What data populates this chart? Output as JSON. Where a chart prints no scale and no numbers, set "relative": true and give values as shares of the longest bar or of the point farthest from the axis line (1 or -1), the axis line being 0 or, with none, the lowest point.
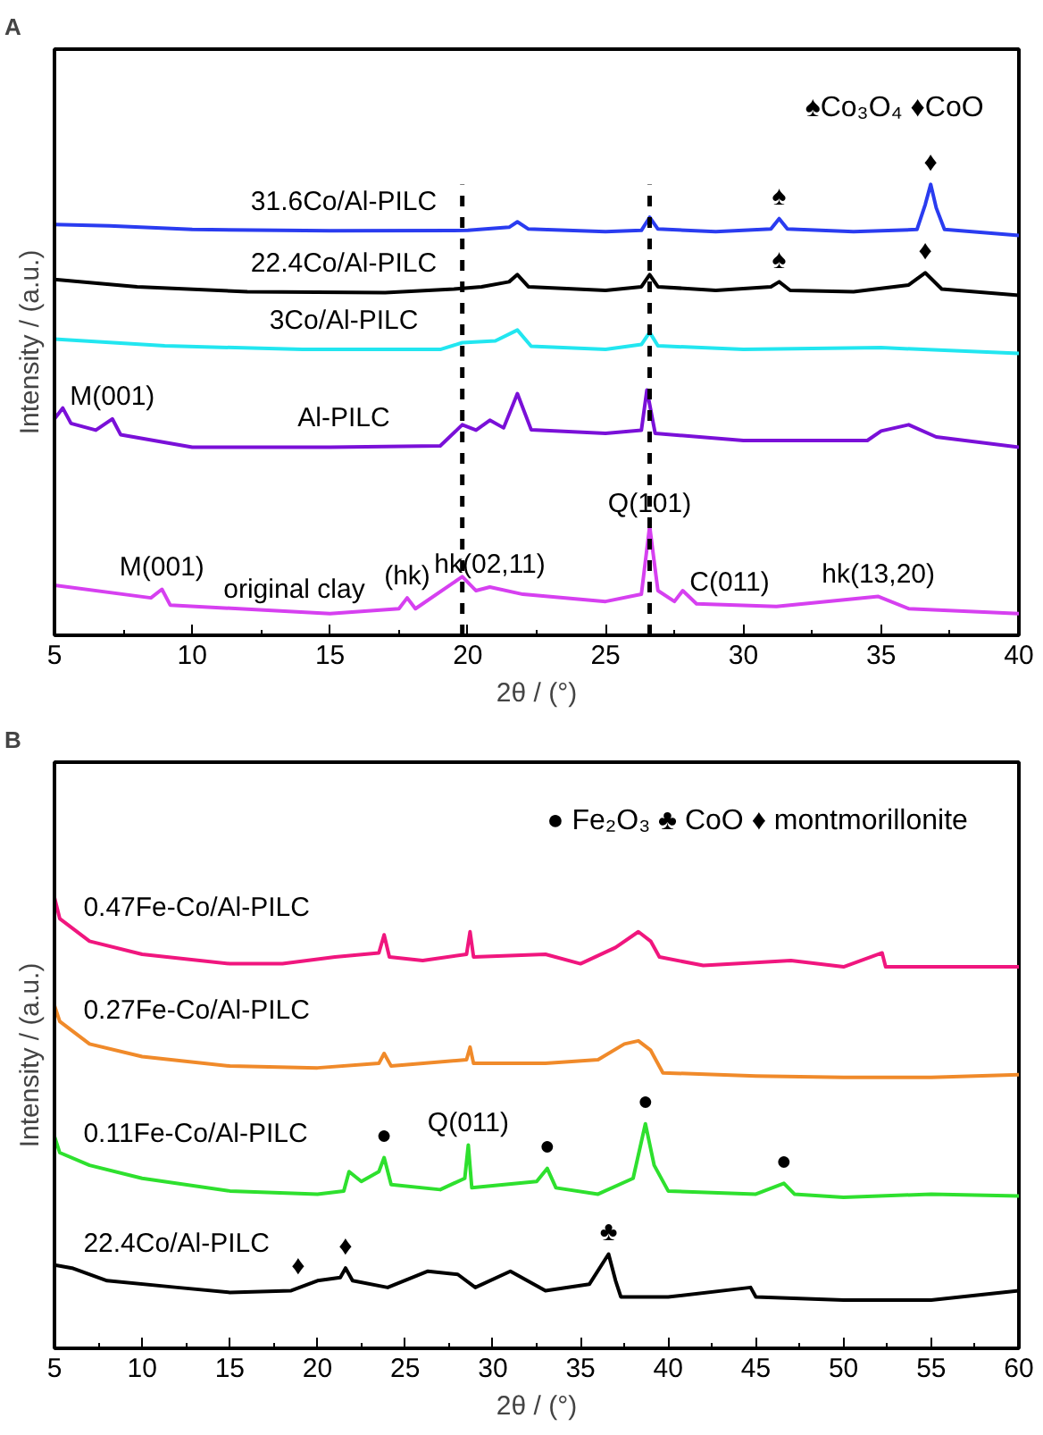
{
  "chart_data": [
    {
      "type": "line",
      "title": "A",
      "xlabel": "2θ / (°)",
      "ylabel": "Intensity / (a.u.)",
      "relative": true,
      "xlim": [
        5,
        40
      ],
      "xticks": [
        5,
        10,
        15,
        20,
        25,
        30,
        35,
        40
      ],
      "line_style": "solid",
      "series": [
        {
          "name": "31.6Co/Al-PILC",
          "color": "#2a3cf0",
          "x": [
            5,
            7,
            10,
            15,
            20,
            21.5,
            21.8,
            22.2,
            25,
            26.3,
            26.6,
            26.9,
            29,
            31,
            31.3,
            31.6,
            34,
            36.3,
            36.6,
            36.8,
            37.0,
            37.3,
            40
          ],
          "values": [
            0.911,
            0.908,
            0.9,
            0.897,
            0.898,
            0.905,
            0.917,
            0.901,
            0.895,
            0.898,
            0.927,
            0.901,
            0.895,
            0.901,
            0.924,
            0.901,
            0.895,
            0.9,
            0.955,
            1.0,
            0.948,
            0.9,
            0.887
          ]
        },
        {
          "name": "22.4Co/Al-PILC",
          "color": "#000000",
          "x": [
            5,
            8,
            12,
            17,
            19.5,
            20.5,
            21.5,
            21.8,
            22.2,
            25,
            26.3,
            26.6,
            26.9,
            29,
            31,
            31.3,
            31.7,
            34,
            36,
            36.6,
            37.2,
            40
          ],
          "values": [
            0.789,
            0.773,
            0.762,
            0.76,
            0.768,
            0.773,
            0.784,
            0.8,
            0.773,
            0.765,
            0.773,
            0.8,
            0.773,
            0.765,
            0.773,
            0.784,
            0.765,
            0.762,
            0.777,
            0.804,
            0.768,
            0.754
          ]
        },
        {
          "name": "3Co/Al-PILC",
          "color": "#22e6f0",
          "x": [
            5,
            9,
            14,
            19,
            19.8,
            21,
            21.8,
            22.3,
            25,
            26.3,
            26.6,
            26.9,
            30,
            35,
            40
          ],
          "values": [
            0.657,
            0.642,
            0.634,
            0.634,
            0.649,
            0.653,
            0.677,
            0.641,
            0.634,
            0.645,
            0.672,
            0.642,
            0.634,
            0.638,
            0.625
          ]
        },
        {
          "name": "Al-PILC",
          "color": "#7a10d8",
          "x": [
            5,
            5.3,
            5.6,
            6.5,
            7.1,
            7.4,
            10,
            15,
            19,
            19.8,
            20.3,
            20.8,
            21.3,
            21.8,
            22.3,
            25,
            26.3,
            26.5,
            26.8,
            30,
            34.5,
            35,
            36,
            37,
            40
          ],
          "values": [
            0.48,
            0.504,
            0.47,
            0.455,
            0.48,
            0.445,
            0.417,
            0.417,
            0.42,
            0.467,
            0.455,
            0.477,
            0.46,
            0.536,
            0.456,
            0.448,
            0.455,
            0.544,
            0.448,
            0.432,
            0.432,
            0.453,
            0.467,
            0.44,
            0.417
          ]
        },
        {
          "color": "#d640f0",
          "x": [
            5,
            8.5,
            8.9,
            9.2,
            15,
            17.5,
            17.8,
            18.1,
            19.8,
            20.3,
            20.8,
            22,
            25,
            26.3,
            26.6,
            26.9,
            27.5,
            27.8,
            28.3,
            31.2,
            34.9,
            36,
            40
          ],
          "values": [
            0.111,
            0.083,
            0.102,
            0.067,
            0.048,
            0.059,
            0.083,
            0.059,
            0.13,
            0.099,
            0.107,
            0.091,
            0.075,
            0.091,
            0.242,
            0.099,
            0.075,
            0.099,
            0.07,
            0.064,
            0.086,
            0.059,
            0.048
          ]
        }
      ],
      "ref_lines": [
        {
          "axis": "x",
          "value": 19.8,
          "line_style": "dashed"
        },
        {
          "axis": "x",
          "value": 26.6,
          "line_style": "dashed"
        }
      ],
      "annotations": [
        "♠Co₃O₄   ♦CoO",
        {
          "text": "♠",
          "x": 31.3,
          "y": 0.924
        },
        {
          "text": "♦",
          "x": 36.8,
          "y": 1.0
        },
        {
          "text": "♠",
          "x": 31.3,
          "y": 0.784
        },
        {
          "text": "♦",
          "x": 36.6,
          "y": 0.804
        },
        {
          "text": "M(001)",
          "x": 7.1,
          "y": 0.48
        },
        {
          "text": "original clay",
          "x": 13.7,
          "y": 0.052
        },
        {
          "text": "M(001)",
          "x": 8.9,
          "y": 0.102
        },
        {
          "text": "(hk)",
          "x": 17.8,
          "y": 0.083
        },
        {
          "text": "hk(02,11)",
          "x": 20.8,
          "y": 0.107
        },
        {
          "text": "Q(101)",
          "x": 26.6,
          "y": 0.242
        },
        {
          "text": "C(011)",
          "x": 29.5,
          "y": 0.068
        },
        {
          "text": "hk(13,20)",
          "x": 34.9,
          "y": 0.086
        }
      ]
    },
    {
      "type": "line",
      "title": "B",
      "xlabel": "2θ / (°)",
      "ylabel": "Intensity / (a.u.)",
      "relative": true,
      "xlim": [
        5,
        60
      ],
      "xticks": [
        5,
        10,
        15,
        20,
        25,
        30,
        35,
        40,
        45,
        50,
        55,
        60
      ],
      "line_style": "solid",
      "series": [
        {
          "name": "0.47Fe-Co/Al-PILC",
          "color": "#f0167e",
          "x": [
            5,
            5.3,
            7,
            10,
            15,
            18,
            21,
            23.5,
            23.8,
            24.1,
            26,
            28.5,
            28.7,
            28.9,
            33,
            35,
            37,
            38.3,
            39,
            39.5,
            42,
            47,
            50,
            52.2,
            52.4,
            55,
            60
          ],
          "values": [
            1.0,
            0.953,
            0.903,
            0.874,
            0.853,
            0.853,
            0.868,
            0.877,
            0.917,
            0.868,
            0.86,
            0.874,
            0.924,
            0.868,
            0.874,
            0.853,
            0.889,
            0.924,
            0.903,
            0.868,
            0.849,
            0.86,
            0.846,
            0.877,
            0.846,
            0.846,
            0.846
          ]
        },
        {
          "name": "0.27Fe-Co/Al-PILC",
          "color": "#f08a2a",
          "x": [
            5,
            5.3,
            7,
            10,
            15,
            20,
            23.5,
            23.8,
            24.2,
            28.5,
            28.7,
            28.9,
            33,
            36,
            37.5,
            38.3,
            39,
            39.7,
            45,
            50,
            55,
            60
          ],
          "values": [
            0.76,
            0.725,
            0.675,
            0.647,
            0.626,
            0.622,
            0.632,
            0.654,
            0.626,
            0.64,
            0.668,
            0.632,
            0.632,
            0.64,
            0.675,
            0.682,
            0.661,
            0.611,
            0.604,
            0.601,
            0.601,
            0.607
          ]
        },
        {
          "name": "0.11Fe-Co/Al-PILC",
          "color": "#2ee02e",
          "x": [
            5,
            5.3,
            7,
            10,
            15,
            20,
            21.5,
            21.8,
            22.5,
            23.5,
            23.8,
            24.2,
            27,
            28.4,
            28.6,
            28.8,
            32.5,
            33.1,
            33.6,
            36,
            38,
            38.7,
            39.2,
            40,
            45,
            46.6,
            47.2,
            50,
            55,
            60
          ],
          "values": [
            0.47,
            0.434,
            0.406,
            0.377,
            0.349,
            0.342,
            0.349,
            0.392,
            0.37,
            0.392,
            0.423,
            0.363,
            0.352,
            0.377,
            0.451,
            0.356,
            0.37,
            0.399,
            0.356,
            0.342,
            0.377,
            0.498,
            0.406,
            0.349,
            0.342,
            0.366,
            0.342,
            0.335,
            0.342,
            0.338
          ]
        },
        {
          "name": "22.4Co/Al-PILC",
          "color": "#000000",
          "x": [
            5,
            6,
            8,
            12,
            15,
            18.5,
            20,
            21.3,
            21.6,
            22,
            24,
            26.3,
            28,
            29,
            31,
            33,
            35.5,
            36.6,
            37,
            37.3,
            40,
            44.7,
            45,
            50,
            55,
            60
          ],
          "values": [
            0.185,
            0.178,
            0.15,
            0.135,
            0.124,
            0.128,
            0.15,
            0.157,
            0.178,
            0.15,
            0.135,
            0.171,
            0.164,
            0.135,
            0.171,
            0.128,
            0.142,
            0.209,
            0.15,
            0.114,
            0.114,
            0.135,
            0.114,
            0.107,
            0.107,
            0.128
          ]
        }
      ],
      "annotations": [
        "● Fe₂O₃  ♣ CoO   ♦  montmorillonite",
        {
          "text": "●",
          "x": 23.8,
          "y": 0.423
        },
        {
          "text": "●",
          "x": 33.1,
          "y": 0.399
        },
        {
          "text": "●",
          "x": 38.7,
          "y": 0.498
        },
        {
          "text": "●",
          "x": 46.6,
          "y": 0.366
        },
        {
          "text": "Q(011)",
          "x": 28.6,
          "y": 0.451
        },
        {
          "text": "♣",
          "x": 36.6,
          "y": 0.209
        },
        {
          "text": "♦",
          "x": 18.9,
          "y": 0.134
        },
        {
          "text": "♦",
          "x": 21.6,
          "y": 0.178
        }
      ]
    }
  ]
}
